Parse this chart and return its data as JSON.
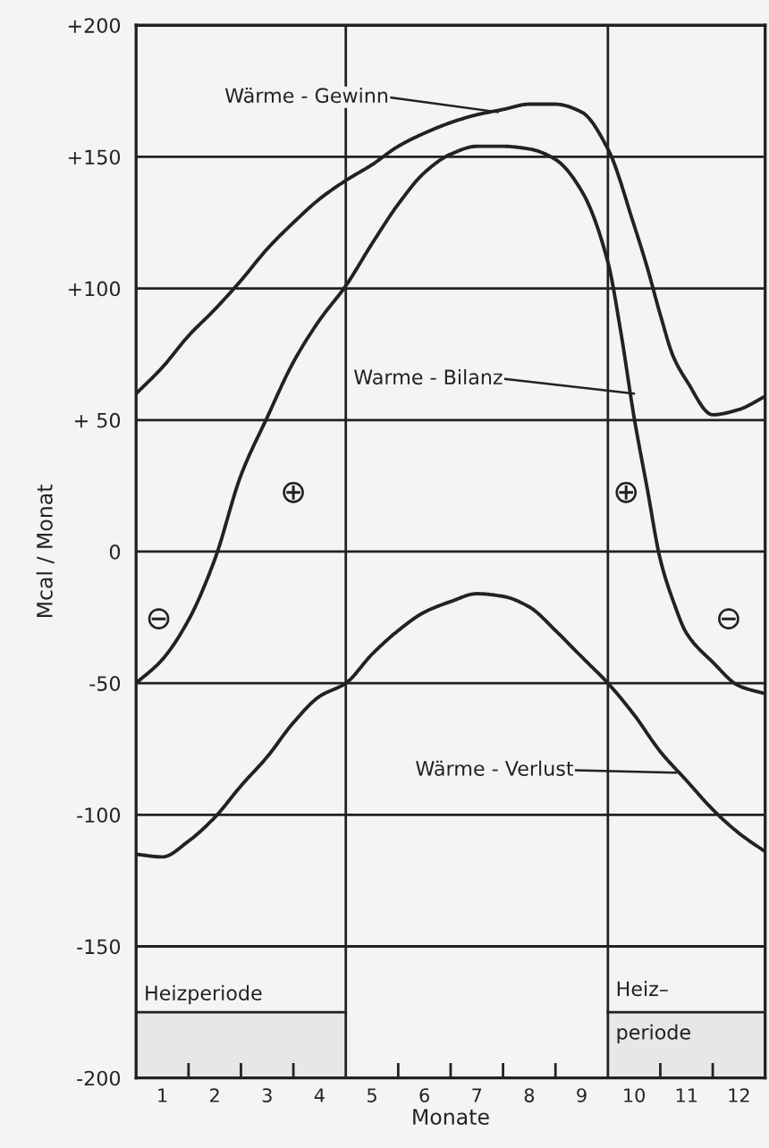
{
  "chart_data": {
    "type": "line",
    "xlabel": "Monate",
    "ylabel": "Mcal / Monat",
    "x": [
      0.5,
      1,
      1.5,
      2,
      2.5,
      3,
      3.5,
      4,
      4.5,
      5,
      5.5,
      6,
      6.5,
      7,
      7.5,
      8,
      8.5,
      9,
      9.5,
      10,
      10.5,
      11,
      11.5,
      12,
      12.5
    ],
    "series": [
      {
        "color": "#222222",
        "x": [
          0.5,
          1,
          1.5,
          2,
          2.5,
          3,
          3.5,
          4,
          4.5,
          5,
          5.5,
          6,
          6.5,
          7,
          7.5,
          8,
          8.5,
          9,
          9.5,
          10,
          10.25,
          10.5,
          10.75,
          11,
          11.5,
          12,
          12.5
        ],
        "values": [
          60,
          70,
          82,
          92,
          103,
          115,
          125,
          134,
          141,
          147,
          154,
          159,
          163,
          166,
          168,
          170,
          170,
          167,
          153,
          124,
          108,
          90,
          74,
          65,
          52,
          54,
          59
        ]
      },
      {
        "color": "#222222",
        "x": [
          0.5,
          1,
          1.5,
          2,
          2.5,
          3,
          3.5,
          4,
          4.5,
          5,
          5.5,
          6,
          6.5,
          7,
          7.5,
          8,
          8.5,
          9,
          9.5,
          9.75,
          10,
          10.25,
          10.5,
          10.75,
          11,
          11.5,
          12,
          12.5
        ],
        "values": [
          -50,
          -41,
          -26,
          -3,
          29,
          51,
          72,
          88,
          101,
          117,
          132,
          144,
          151,
          154,
          154,
          153,
          149,
          137,
          110,
          83,
          51,
          24,
          -3,
          -19,
          -31,
          -42,
          -51,
          -54
        ]
      },
      {
        "color": "#222222",
        "values": [
          -115,
          -116,
          -110,
          -101,
          -89,
          -78,
          -65,
          -55,
          -50,
          -39,
          -30,
          -23,
          -19,
          -16,
          -17,
          -21,
          -30,
          -40,
          -50,
          -62,
          -76,
          -87,
          -98,
          -107,
          -114
        ]
      }
    ],
    "xlim": [
      0.5,
      12.5
    ],
    "xticks": [
      1,
      {
        "value": 1.5,
        "label": null
      },
      2,
      {
        "value": 2.5,
        "label": null
      },
      3,
      {
        "value": 3.5,
        "label": null
      },
      4,
      5,
      {
        "value": 5.5,
        "label": null
      },
      6,
      {
        "value": 6.5,
        "label": null
      },
      7,
      {
        "value": 7.5,
        "label": null
      },
      8,
      {
        "value": 8.5,
        "label": null
      },
      9,
      10,
      {
        "value": 10.5,
        "label": null
      },
      11,
      {
        "value": 11.5,
        "label": null
      },
      12
    ],
    "ylim": [
      -200,
      200
    ],
    "yticks": [
      {
        "value": 200,
        "label": "+200"
      },
      {
        "value": 150,
        "label": "+150"
      },
      {
        "value": 100,
        "label": "+100"
      },
      {
        "value": 50,
        "label": "+ 50"
      },
      0,
      {
        "value": -50,
        "label": "-50"
      },
      {
        "value": -100,
        "label": "-100"
      },
      {
        "value": -150,
        "label": "-150"
      },
      {
        "value": -200,
        "label": "-200"
      }
    ],
    "grid": "y",
    "marker": "none",
    "line_style": "solid",
    "ref_lines": [
      {
        "axis": "x",
        "value": 4.5,
        "color": "#222222"
      },
      {
        "axis": "x",
        "value": 9.5,
        "color": "#222222"
      }
    ],
    "bands": [
      {
        "axis": "x",
        "from": 0.5,
        "to": 4.5,
        "label": "Heizperiode",
        "color": "#222222"
      },
      {
        "axis": "x",
        "from": 9.5,
        "to": 12.5,
        "label": "Heiz–\nperiode",
        "color": "#222222"
      }
    ],
    "annotations": [
      {
        "text": "Wärme - Gewinn",
        "x": 7.4,
        "y": 167
      },
      {
        "text": "Warme - Bilanz",
        "x": 10.0,
        "y": 60
      },
      {
        "text": "Wärme - Verlust",
        "x": 10.8,
        "y": -84
      },
      "⊕",
      "⊕",
      "⊖",
      "⊖"
    ]
  }
}
